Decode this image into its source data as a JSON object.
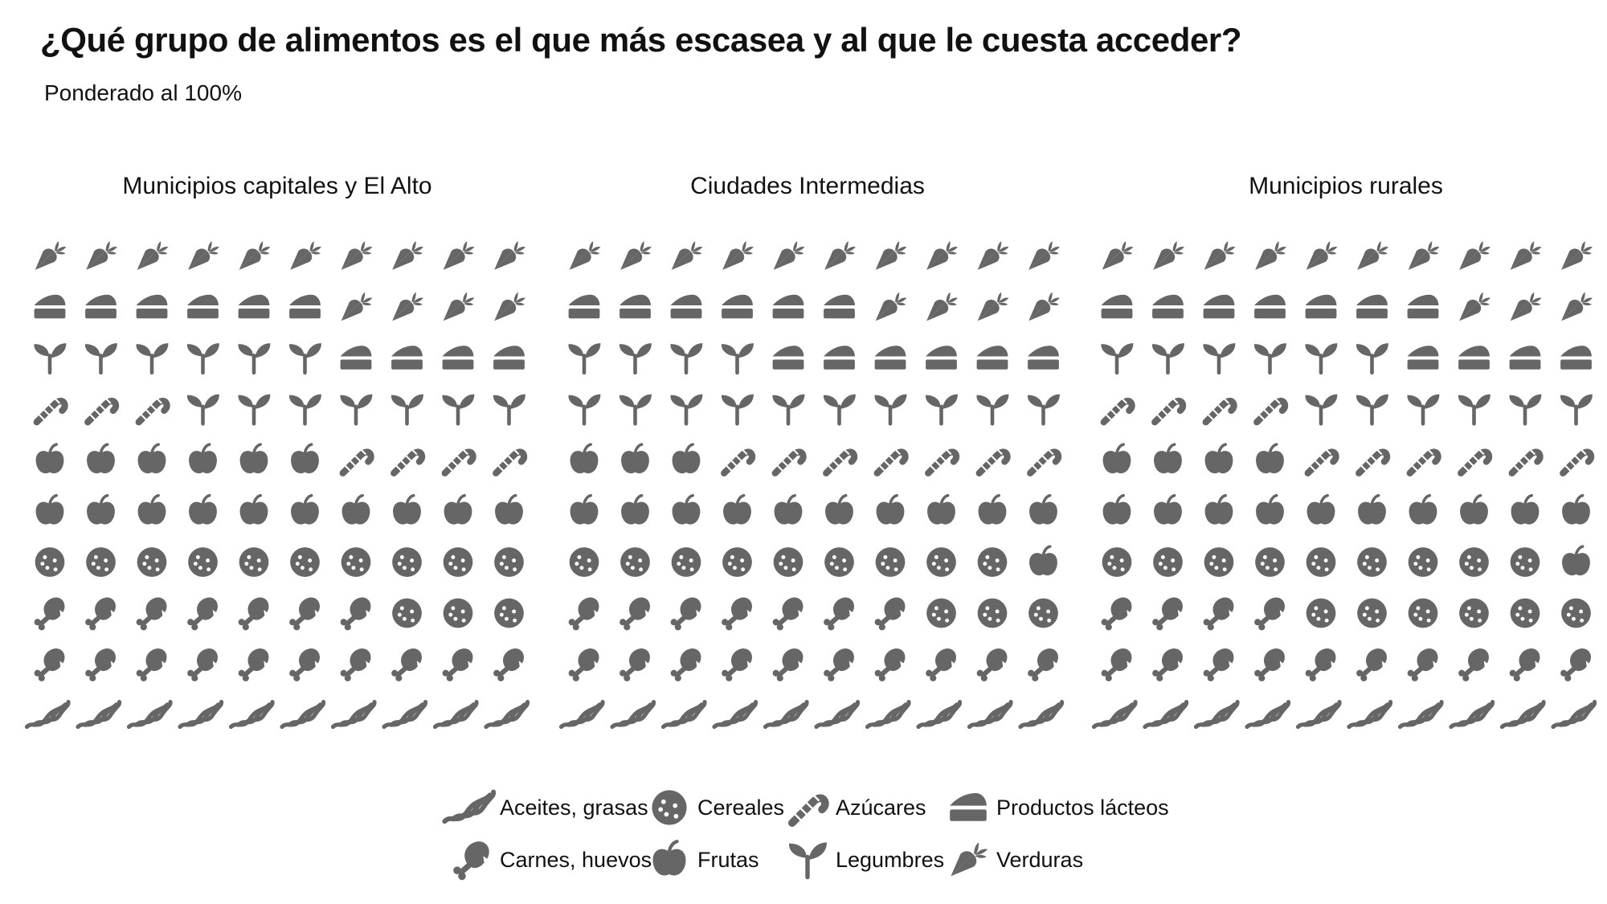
{
  "title": "¿Qué grupo de alimentos es el que más escasea y al que le cuesta acceder?",
  "subtitle": "Ponderado al 100%",
  "chart_data": {
    "type": "waffle",
    "unit": "%",
    "icon_color": "#666666",
    "legend_position": "bottom",
    "categories": [
      "Aceites, grasas",
      "Carnes, huevos",
      "Cereales",
      "Frutas",
      "Azúcares",
      "Legumbres",
      "Productos lácteos",
      "Verduras"
    ],
    "icons": [
      "bacon-icon",
      "drumstick-icon",
      "cookie-icon",
      "apple-icon",
      "candy-cane-icon",
      "seedling-icon",
      "cheese-icon",
      "carrot-icon"
    ],
    "panels": [
      {
        "name": "Municipios capitales y El Alto",
        "values": [
          10,
          17,
          13,
          16,
          7,
          13,
          10,
          14
        ]
      },
      {
        "name": "Ciudades Intermedias",
        "values": [
          10,
          17,
          12,
          14,
          7,
          14,
          12,
          14
        ]
      },
      {
        "name": "Municipios rurales",
        "values": [
          10,
          14,
          15,
          15,
          10,
          12,
          11,
          13
        ]
      }
    ]
  }
}
